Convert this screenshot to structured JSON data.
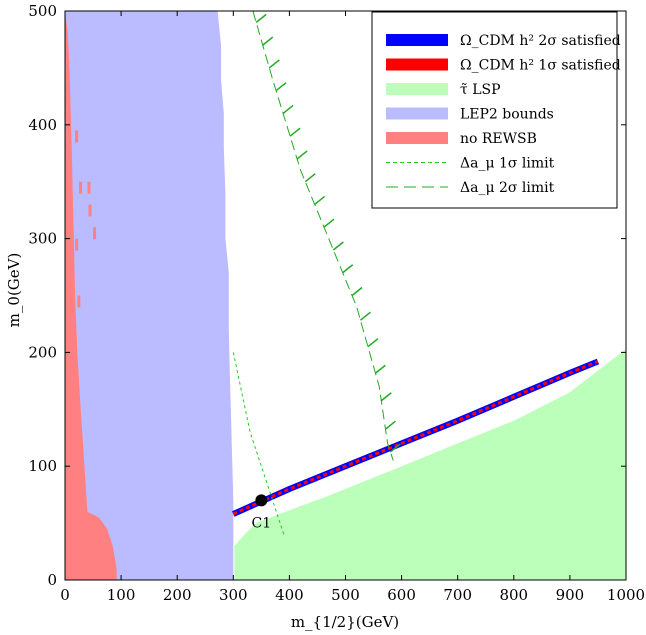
{
  "chart_data": {
    "type": "area",
    "xlabel": "m_{1/2}(GeV)",
    "ylabel": "m_0(GeV)",
    "xlim": [
      0,
      1000
    ],
    "ylim": [
      0,
      500
    ],
    "x_ticks": [
      "0",
      "100",
      "200",
      "300",
      "400",
      "500",
      "600",
      "700",
      "800",
      "900",
      "1000"
    ],
    "y_ticks": [
      "0",
      "100",
      "200",
      "300",
      "400",
      "500"
    ],
    "grid": false,
    "legend_position": "top-right",
    "legend": [
      {
        "key": "omega2",
        "label": "Ω_CDM h² 2σ satisfied",
        "color": "#0000ff",
        "style": "band"
      },
      {
        "key": "omega1",
        "label": "Ω_CDM h² 1σ satisfied",
        "color": "#ff0000",
        "style": "band"
      },
      {
        "key": "stau",
        "label": "τ̃ LSP",
        "color": "#bbffbb",
        "style": "band"
      },
      {
        "key": "lep2",
        "label": "LEP2 bounds",
        "color": "#bbbbff",
        "style": "band"
      },
      {
        "key": "rewsb",
        "label": "no REWSB",
        "color": "#ff8080",
        "style": "band"
      },
      {
        "key": "amu1",
        "label": "Δa_μ 1σ limit",
        "color": "#22cc22",
        "style": "short-dash"
      },
      {
        "key": "amu2",
        "label": "Δa_μ 2σ limit",
        "color": "#22aa22",
        "style": "long-dash"
      }
    ],
    "series": [
      {
        "key": "lep2",
        "name": "LEP2 bounds",
        "x": [
          0,
          272,
          278,
          278,
          283,
          283,
          286,
          286,
          292,
          292,
          294,
          300,
          300,
          0
        ],
        "y": [
          500,
          500,
          470,
          440,
          410,
          380,
          340,
          300,
          270,
          220,
          180,
          70,
          0,
          0
        ]
      },
      {
        "key": "rewsb",
        "name": "no REWSB",
        "x": [
          0,
          5,
          8,
          12,
          18,
          22,
          28,
          40,
          60,
          75,
          85,
          92,
          92,
          0
        ],
        "y": [
          500,
          480,
          450,
          380,
          250,
          200,
          150,
          60,
          55,
          45,
          30,
          10,
          0,
          0
        ]
      },
      {
        "key": "stau",
        "name": "τ̃ LSP",
        "x": [
          302,
          320,
          340,
          420,
          470,
          600,
          700,
          800,
          900,
          1000,
          1000,
          302
        ],
        "y": [
          30,
          40,
          50,
          65,
          74,
          100,
          120,
          140,
          165,
          203,
          0,
          0
        ]
      },
      {
        "key": "omega",
        "name": "Ω_CDM h²",
        "x": [
          300,
          400,
          500,
          600,
          700,
          800,
          900,
          950
        ],
        "y": [
          58,
          80,
          100,
          120,
          140,
          161,
          182,
          192
        ]
      },
      {
        "key": "amu1",
        "name": "Δa_μ 1σ limit",
        "x": [
          300,
          330,
          370,
          390
        ],
        "y": [
          200,
          130,
          70,
          40
        ]
      },
      {
        "key": "amu2",
        "name": "Δa_μ 2σ limit",
        "x": [
          335,
          370,
          420,
          470,
          520,
          560,
          575,
          585
        ],
        "y": [
          500,
          440,
          360,
          300,
          240,
          170,
          120,
          105
        ]
      }
    ],
    "points": [
      {
        "label": "C1",
        "x": 350,
        "y": 70
      }
    ]
  }
}
